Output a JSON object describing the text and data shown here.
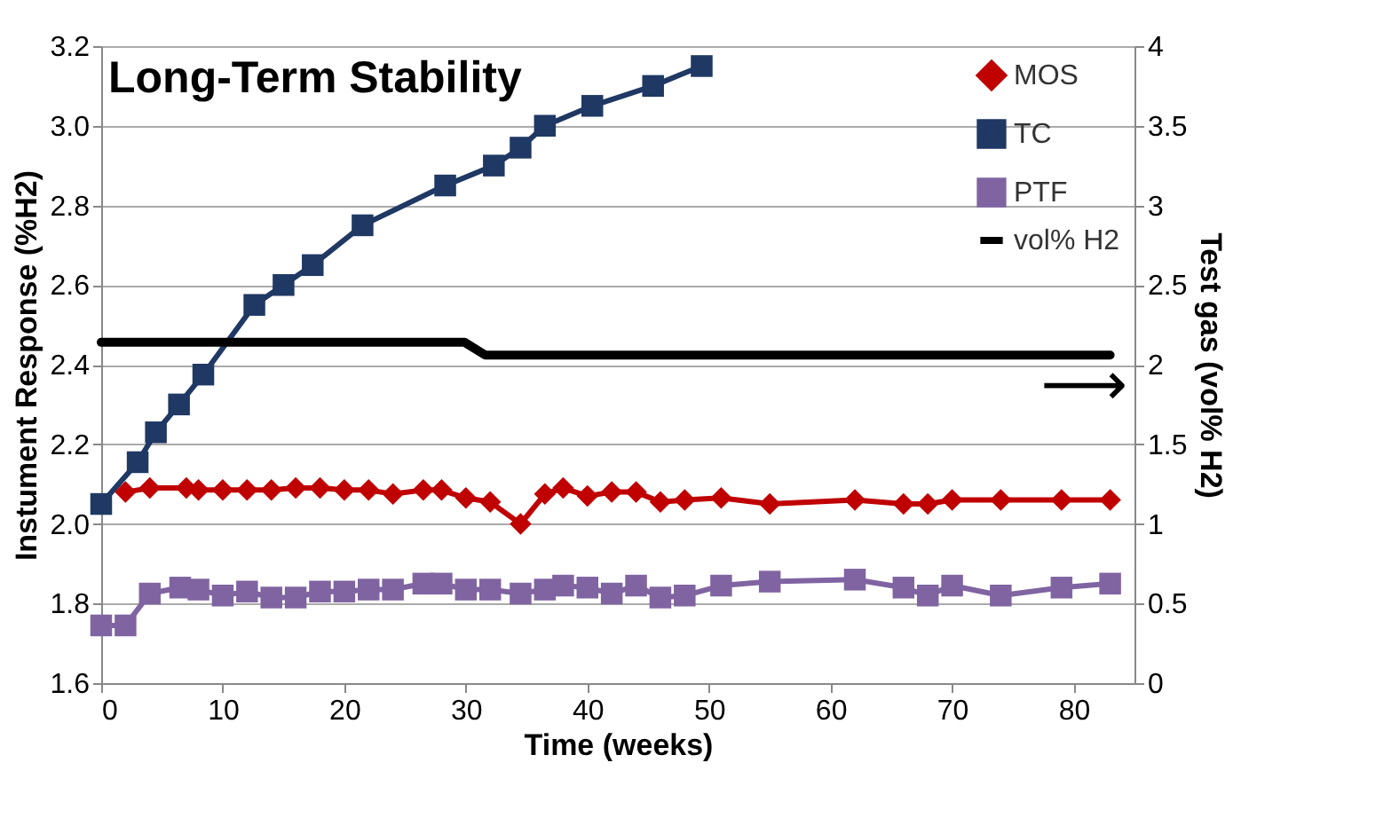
{
  "chart_data": {
    "type": "line",
    "title": "Long-Term Stability",
    "xlabel": "Time (weeks)",
    "ylabel": "Instument Response (%H2)",
    "y2label": "Test gas (vol% H2)",
    "xlim": [
      0,
      85
    ],
    "xticks": [
      0,
      10,
      20,
      30,
      40,
      50,
      60,
      70,
      80
    ],
    "ylim": [
      1.6,
      3.2
    ],
    "yticks": [
      1.6,
      1.8,
      {
        "value": 2,
        "label": "2.0"
      },
      2.2,
      2.4,
      2.6,
      2.8,
      {
        "value": 3,
        "label": "3.0"
      },
      3.2
    ],
    "y2lim": [
      0,
      4
    ],
    "y2ticks": [
      0,
      0.5,
      1,
      1.5,
      2,
      2.5,
      3,
      3.5,
      4
    ],
    "grid": "y",
    "legend": "top right",
    "annotations": [
      "⟶"
    ],
    "series": [
      {
        "name": "MOS",
        "color": "#c00000",
        "marker": "diamond",
        "x": [
          2,
          4,
          7,
          8,
          10,
          12,
          14,
          16,
          18,
          20,
          22,
          24,
          26.5,
          28,
          30,
          32,
          34.5,
          36.5,
          38,
          40,
          42,
          44,
          46,
          48,
          51,
          55,
          62,
          66,
          68,
          70,
          74,
          79,
          83
        ],
        "values": [
          2.08,
          2.09,
          2.09,
          2.085,
          2.085,
          2.085,
          2.085,
          2.09,
          2.09,
          2.085,
          2.085,
          2.075,
          2.085,
          2.085,
          2.065,
          2.055,
          2.0,
          2.075,
          2.09,
          2.07,
          2.08,
          2.08,
          2.055,
          2.06,
          2.065,
          2.05,
          2.06,
          2.05,
          2.05,
          2.06,
          2.06,
          2.06,
          2.06
        ]
      },
      {
        "name": "TC",
        "color": "#1f3864",
        "marker": "square",
        "x": [
          0,
          3,
          4.5,
          6.4,
          8.4,
          12.6,
          15,
          17.4,
          21.5,
          28.3,
          32.3,
          34.5,
          36.5,
          40.4,
          45.4,
          49.4
        ],
        "values": [
          2.05,
          2.155,
          2.23,
          2.3,
          2.375,
          2.55,
          2.6,
          2.65,
          2.75,
          2.85,
          2.9,
          2.945,
          3.0,
          3.05,
          3.1,
          3.15
        ]
      },
      {
        "name": "PTF",
        "color": "#8064a2",
        "marker": "square",
        "x": [
          0,
          2,
          4,
          6.5,
          8,
          10,
          12,
          14,
          16,
          18,
          20,
          22,
          24,
          26.5,
          28,
          30,
          32,
          34.5,
          36.5,
          38,
          40,
          42,
          44,
          46,
          48,
          51,
          55,
          62,
          66,
          68,
          70,
          74,
          79,
          83
        ],
        "values": [
          1.745,
          1.745,
          1.825,
          1.84,
          1.835,
          1.82,
          1.83,
          1.815,
          1.815,
          1.83,
          1.83,
          1.835,
          1.835,
          1.85,
          1.85,
          1.835,
          1.835,
          1.825,
          1.835,
          1.845,
          1.84,
          1.825,
          1.845,
          1.815,
          1.82,
          1.845,
          1.855,
          1.86,
          1.84,
          1.82,
          1.845,
          1.82,
          1.84,
          1.85
        ]
      },
      {
        "name": "vol% H2",
        "color": "#000000",
        "marker": "none",
        "axis": "y2",
        "x": [
          0,
          29.9,
          31.6,
          83
        ],
        "values": [
          2.14,
          2.14,
          2.06,
          2.06
        ]
      }
    ]
  }
}
